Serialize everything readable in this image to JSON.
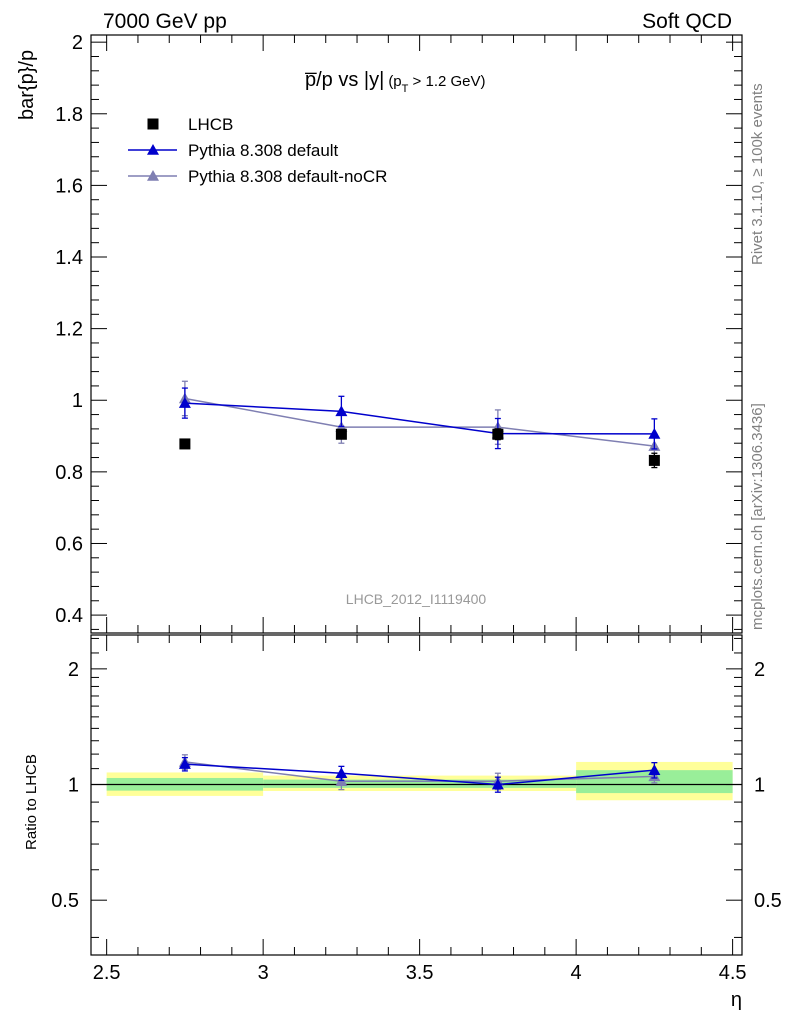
{
  "header": {
    "left": "7000 GeV pp",
    "right": "Soft QCD"
  },
  "side_labels": {
    "rivet": "Rivet 3.1.10, ≥ 100k events",
    "mcplots": "mcplots.cern.ch [arXiv:1306.3436]"
  },
  "plot": {
    "title_main": "p̅/p vs |y|",
    "title_sub_open": "(p",
    "title_sub_T": "T",
    "title_sub_close": " > 1.2 GeV)",
    "analysis_id": "LHCB_2012_I1119400"
  },
  "chart_data": [
    {
      "type": "scatter",
      "panel": "main",
      "xlabel": "η",
      "ylabel": "bar{p}/p",
      "xlim": [
        2.45,
        4.53
      ],
      "ylim": [
        0.35,
        2.02
      ],
      "xticks": [
        2.5,
        3,
        3.5,
        4,
        4.5
      ],
      "xtick_labels": [
        "2.5",
        "3",
        "3.5",
        "4",
        "4.5"
      ],
      "yticks": [
        0.4,
        0.6,
        0.8,
        1,
        1.2,
        1.4,
        1.6,
        1.8,
        2
      ],
      "ytick_labels": [
        "0.4",
        "0.6",
        "0.8",
        "1",
        "1.2",
        "1.4",
        "1.6",
        "1.8",
        "2"
      ],
      "legend_position": "top-left",
      "series": [
        {
          "name": "LHCB",
          "color": "#000000",
          "marker": "square",
          "x": [
            2.75,
            3.25,
            3.75,
            4.25
          ],
          "y": [
            0.878,
            0.905,
            0.905,
            0.832
          ],
          "err": [
            0.008,
            0.012,
            0.015,
            0.02
          ]
        },
        {
          "name": "Pythia 8.308 default",
          "color": "#0000cc",
          "marker": "triangle",
          "x": [
            2.75,
            3.25,
            3.75,
            4.25
          ],
          "y": [
            0.992,
            0.969,
            0.907,
            0.906
          ],
          "err": [
            0.042,
            0.042,
            0.042,
            0.042
          ]
        },
        {
          "name": "Pythia 8.308 default-noCR",
          "color": "#7f7fb2",
          "marker": "triangle",
          "x": [
            2.75,
            3.25,
            3.75,
            4.25
          ],
          "y": [
            1.005,
            0.925,
            0.925,
            0.872
          ],
          "err": [
            0.048,
            0.045,
            0.048,
            0.035
          ]
        }
      ]
    },
    {
      "type": "scatter",
      "panel": "ratio",
      "xlabel": "η",
      "ylabel": "Ratio to LHCB",
      "xlim": [
        2.45,
        4.53
      ],
      "ylim": [
        0.36,
        2.45
      ],
      "log_y": true,
      "yticks": [
        0.5,
        1,
        2
      ],
      "ytick_labels": [
        "0.5",
        "1",
        "2"
      ],
      "bands": [
        {
          "x": [
            2.5,
            3.0
          ],
          "yellow": [
            0.934,
            1.075
          ],
          "green": [
            0.964,
            1.04
          ]
        },
        {
          "x": [
            3.0,
            4.0
          ],
          "yellow": [
            0.962,
            1.055
          ],
          "green": [
            0.98,
            1.03
          ]
        },
        {
          "x": [
            4.0,
            4.5
          ],
          "yellow": [
            0.91,
            1.145
          ],
          "green": [
            0.95,
            1.09
          ]
        }
      ],
      "series": [
        {
          "name": "Pythia 8.308 default",
          "color": "#0000cc",
          "x": [
            2.75,
            3.25,
            3.75,
            4.25
          ],
          "y": [
            1.13,
            1.07,
            1.0,
            1.09
          ],
          "err": [
            0.045,
            0.045,
            0.045,
            0.05
          ]
        },
        {
          "name": "Pythia 8.308 default-noCR",
          "color": "#7f7fb2",
          "x": [
            2.75,
            3.25,
            3.75,
            4.25
          ],
          "y": [
            1.145,
            1.02,
            1.02,
            1.05
          ],
          "err": [
            0.05,
            0.05,
            0.05,
            0.04
          ]
        }
      ]
    }
  ]
}
